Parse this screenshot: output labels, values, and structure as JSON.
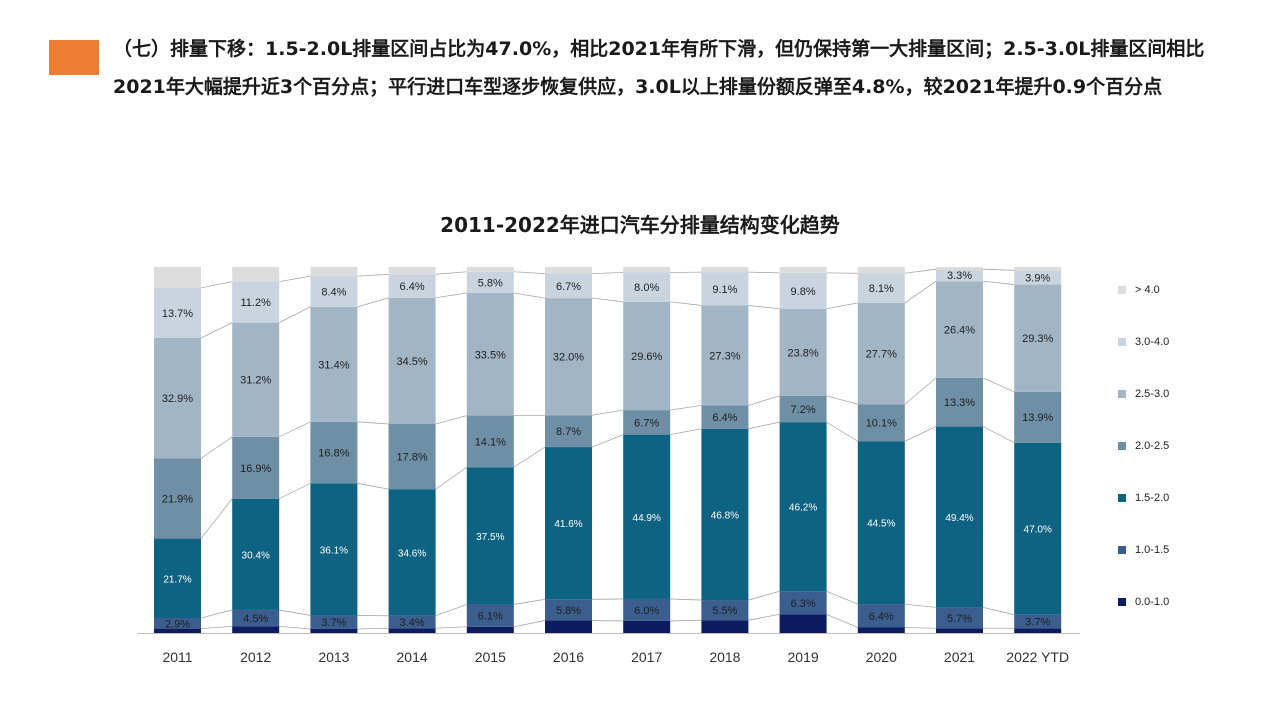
{
  "slide": {
    "accent_color": "#ED7D31",
    "headline": "（七）排量下移：1.5-2.0L排量区间占比为47.0%，相比2021年有所下滑，但仍保持第一大排量区间；2.5-3.0L排量区间相比2021年大幅提升近3个百分点；平行进口车型逐步恢复供应，3.0L以上排量份额反弹至4.8%，较2021年提升0.9个百分点"
  },
  "chart_data": {
    "type": "bar",
    "stacked": true,
    "percent_stacked": true,
    "title": "2011-2022年进口汽车分排量结构变化趋势",
    "xlabel": "",
    "ylabel": "",
    "ylim": [
      0,
      100
    ],
    "grid": false,
    "legend_position": "right",
    "categories": [
      "2011",
      "2012",
      "2013",
      "2014",
      "2015",
      "2016",
      "2017",
      "2018",
      "2019",
      "2020",
      "2021",
      "2022 YTD"
    ],
    "series": [
      {
        "name": "0.0-1.0",
        "color": "#0D1B60",
        "values": [
          1.2,
          1.8,
          1.1,
          1.3,
          1.7,
          3.4,
          3.3,
          3.5,
          5.1,
          1.5,
          1.3,
          1.3
        ],
        "labels": [
          "",
          "",
          "",
          "",
          "",
          "",
          "",
          "",
          "",
          "",
          "",
          ""
        ]
      },
      {
        "name": "1.0-1.5",
        "color": "#3B5E8E",
        "values": [
          2.9,
          4.5,
          3.7,
          3.4,
          6.1,
          5.8,
          6.0,
          5.5,
          6.3,
          6.4,
          5.7,
          3.7
        ],
        "labels": [
          "2.9%",
          "4.5%",
          "3.7%",
          "3.4%",
          "6.1%",
          "5.8%",
          "6.0%",
          "5.5%",
          "6.3%",
          "6.4%",
          "5.7%",
          "3.7%"
        ]
      },
      {
        "name": "1.5-2.0",
        "color": "#0E6282",
        "values": [
          21.7,
          30.4,
          36.1,
          34.6,
          37.5,
          41.6,
          44.9,
          46.8,
          46.2,
          44.5,
          49.4,
          47.0
        ],
        "labels": [
          "21.7%",
          "30.4%",
          "36.1%",
          "34.6%",
          "37.5%",
          "41.6%",
          "44.9%",
          "46.8%",
          "46.2%",
          "44.5%",
          "49.4%",
          "47.0%"
        ]
      },
      {
        "name": "2.0-2.5",
        "color": "#6E8FA5",
        "values": [
          21.9,
          16.9,
          16.8,
          17.8,
          14.1,
          8.7,
          6.7,
          6.4,
          7.2,
          10.1,
          13.3,
          13.9
        ],
        "labels": [
          "21.9%",
          "16.9%",
          "16.8%",
          "17.8%",
          "14.1%",
          "8.7%",
          "6.7%",
          "6.4%",
          "7.2%",
          "10.1%",
          "13.3%",
          "13.9%"
        ]
      },
      {
        "name": "2.5-3.0",
        "color": "#A2B5C4",
        "values": [
          32.9,
          31.2,
          31.4,
          34.5,
          33.5,
          32.0,
          29.6,
          27.3,
          23.8,
          27.7,
          26.4,
          29.3
        ],
        "labels": [
          "32.9%",
          "31.2%",
          "31.4%",
          "34.5%",
          "33.5%",
          "32.0%",
          "29.6%",
          "27.3%",
          "23.8%",
          "27.7%",
          "26.4%",
          "29.3%"
        ]
      },
      {
        "name": "3.0-4.0",
        "color": "#C9D4DE",
        "values": [
          13.7,
          11.2,
          8.4,
          6.4,
          5.8,
          6.7,
          8.0,
          9.1,
          9.8,
          8.1,
          3.3,
          3.9
        ],
        "labels": [
          "13.7%",
          "11.2%",
          "8.4%",
          "6.4%",
          "5.8%",
          "6.7%",
          "8.0%",
          "9.1%",
          "9.8%",
          "8.1%",
          "3.3%",
          "3.9%"
        ]
      },
      {
        "name": "> 4.0",
        "color": "#DCDCDC",
        "values": [
          5.7,
          4.0,
          2.5,
          2.0,
          1.3,
          1.8,
          1.5,
          1.4,
          1.6,
          1.7,
          0.6,
          0.9
        ],
        "labels": [
          "",
          "",
          "",
          "",
          "",
          "",
          "",
          "",
          "",
          "",
          "",
          ""
        ]
      }
    ]
  }
}
